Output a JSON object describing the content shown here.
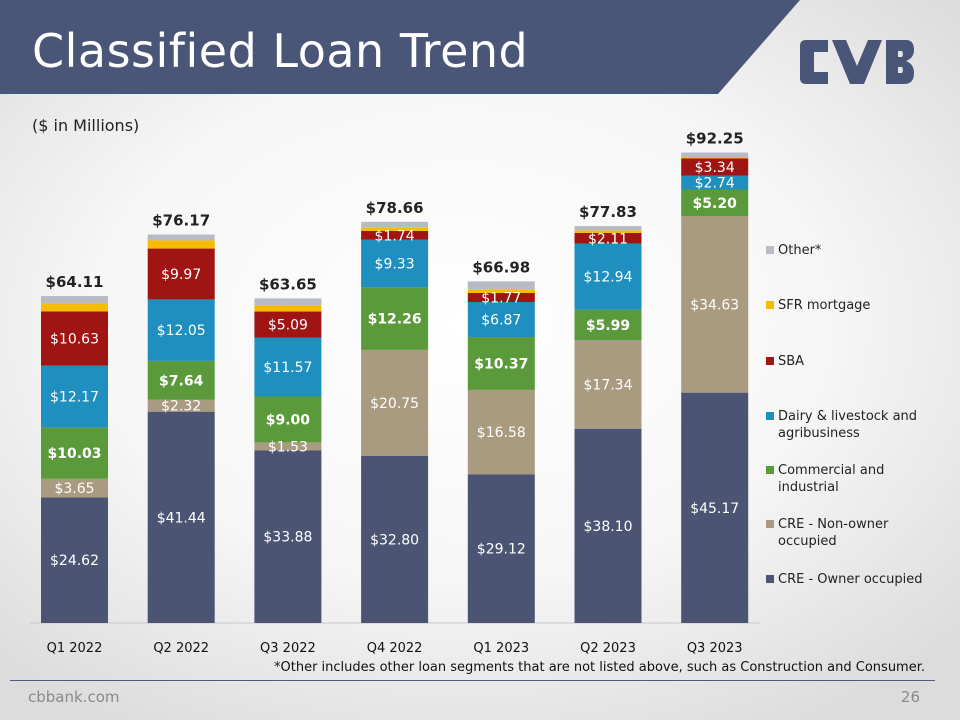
{
  "header": {
    "title": "Classified Loan Trend",
    "unit_note": "($ in Millions)",
    "banner_color": "#4a5677"
  },
  "footer": {
    "footnote": "*Other includes other loan segments that are not listed above, such as Construction and Consumer.",
    "site": "cbbank.com",
    "page_number": "26"
  },
  "logo": {
    "text": "CVB",
    "color": "#4a5677"
  },
  "chart_data": {
    "type": "bar",
    "stacked": true,
    "categories": [
      "Q1 2022",
      "Q2 2022",
      "Q3 2022",
      "Q4 2022",
      "Q1 2023",
      "Q2 2023",
      "Q3 2023"
    ],
    "totals": [
      "$64.11",
      "$76.17",
      "$63.65",
      "$78.66",
      "$66.98",
      "$77.83",
      "$92.25"
    ],
    "series": [
      {
        "name": "CRE - Owner occupied",
        "color": "#4b5573",
        "label_color": "#ffffff",
        "label_bold": false,
        "values": [
          24.62,
          41.44,
          33.88,
          32.8,
          29.12,
          38.1,
          45.17
        ],
        "labels": [
          "$24.62",
          "$41.44",
          "$33.88",
          "$32.80",
          "$29.12",
          "$38.10",
          "$45.17"
        ]
      },
      {
        "name": "CRE - Non-owner occupied",
        "color": "#a89b80",
        "label_color": "#ffffff",
        "label_bold": false,
        "values": [
          3.65,
          2.32,
          1.53,
          20.75,
          16.58,
          17.34,
          34.63
        ],
        "labels": [
          "$3.65",
          "$2.32",
          "$1.53",
          "$20.75",
          "$16.58",
          "$17.34",
          "$34.63"
        ]
      },
      {
        "name": "Commercial and industrial",
        "color": "#5b9a3a",
        "label_color": "#ffffff",
        "label_bold": true,
        "values": [
          10.03,
          7.64,
          9.0,
          12.26,
          10.37,
          5.99,
          5.2
        ],
        "labels": [
          "$10.03",
          "$7.64",
          "$9.00",
          "$12.26",
          "$10.37",
          "$5.99",
          "$5.20"
        ]
      },
      {
        "name": "Dairy & livestock and agribusiness",
        "color": "#1e8fbf",
        "label_color": "#ffffff",
        "label_bold": false,
        "values": [
          12.17,
          12.05,
          11.57,
          9.33,
          6.87,
          12.94,
          2.74
        ],
        "labels": [
          "$12.17",
          "$12.05",
          "$11.57",
          "$9.33",
          "$6.87",
          "$12.94",
          "$2.74"
        ]
      },
      {
        "name": "SBA",
        "color": "#a01414",
        "label_color": "#ffffff",
        "label_bold": false,
        "values": [
          10.63,
          9.97,
          5.09,
          1.74,
          1.77,
          2.11,
          3.34
        ],
        "labels": [
          "$10.63",
          "$9.97",
          "$5.09",
          "$1.74",
          "$1.77",
          "$2.11",
          "$3.34"
        ]
      },
      {
        "name": "SFR mortgage",
        "color": "#f6bd00",
        "label_color": "#ffffff",
        "label_bold": false,
        "values": [
          1.6,
          1.6,
          1.2,
          0.6,
          0.6,
          0.5,
          0.3
        ],
        "labels": [
          "",
          "",
          "",
          "",
          "",
          "",
          ""
        ]
      },
      {
        "name": "Other*",
        "color": "#b8bac4",
        "label_color": "#ffffff",
        "label_bold": false,
        "values": [
          1.41,
          1.15,
          1.38,
          1.18,
          1.67,
          0.85,
          0.87
        ],
        "labels": [
          "",
          "",
          "",
          "",
          "",
          "",
          ""
        ]
      }
    ],
    "ylim": [
      0,
      100
    ],
    "grid": false,
    "legend_position": "right",
    "legend_order": [
      "Other*",
      "SFR mortgage",
      "SBA",
      "Dairy & livestock and agribusiness",
      "Commercial and industrial",
      "CRE - Non-owner occupied",
      "CRE - Owner occupied"
    ],
    "xlabel": "",
    "ylabel": ""
  }
}
